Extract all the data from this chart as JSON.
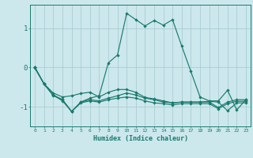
{
  "xlabel": "Humidex (Indice chaleur)",
  "background_color": "#cce8ec",
  "grid_color": "#aacdd4",
  "line_color": "#1a7a6e",
  "x_values": [
    0,
    1,
    2,
    3,
    4,
    5,
    6,
    7,
    8,
    9,
    10,
    11,
    12,
    13,
    14,
    15,
    16,
    17,
    18,
    19,
    20,
    21,
    22,
    23
  ],
  "series_main": [
    0.0,
    -0.42,
    -0.7,
    -0.85,
    -1.12,
    -0.88,
    -0.78,
    -0.72,
    0.12,
    0.32,
    1.38,
    1.22,
    1.06,
    1.2,
    1.08,
    1.22,
    0.55,
    -0.1,
    -0.75,
    -0.85,
    -0.85,
    -0.58,
    -1.08,
    -0.82
  ],
  "series1": [
    0.0,
    -0.42,
    -0.7,
    -0.82,
    -1.12,
    -0.88,
    -0.82,
    -0.85,
    -0.78,
    -0.72,
    -0.65,
    -0.7,
    -0.78,
    -0.82,
    -0.88,
    -0.9,
    -0.88,
    -0.88,
    -0.88,
    -0.88,
    -1.02,
    -0.88,
    -0.82,
    -0.82
  ],
  "series2": [
    0.0,
    -0.42,
    -0.72,
    -0.82,
    -1.12,
    -0.9,
    -0.85,
    -0.88,
    -0.82,
    -0.78,
    -0.75,
    -0.78,
    -0.85,
    -0.9,
    -0.92,
    -0.95,
    -0.92,
    -0.92,
    -0.92,
    -0.92,
    -1.05,
    -0.92,
    -0.86,
    -0.86
  ],
  "series3": [
    -0.02,
    -0.42,
    -0.65,
    -0.75,
    -0.72,
    -0.66,
    -0.63,
    -0.75,
    -0.63,
    -0.56,
    -0.56,
    -0.63,
    -0.76,
    -0.8,
    -0.85,
    -0.9,
    -0.88,
    -0.88,
    -0.88,
    -0.86,
    -0.88,
    -1.1,
    -0.9,
    -0.9
  ],
  "ylim": [
    -1.5,
    1.6
  ],
  "xlim": [
    -0.5,
    23.5
  ],
  "yticks": [
    -1,
    0,
    1
  ],
  "xticks": [
    0,
    1,
    2,
    3,
    4,
    5,
    6,
    7,
    8,
    9,
    10,
    11,
    12,
    13,
    14,
    15,
    16,
    17,
    18,
    19,
    20,
    21,
    22,
    23
  ]
}
